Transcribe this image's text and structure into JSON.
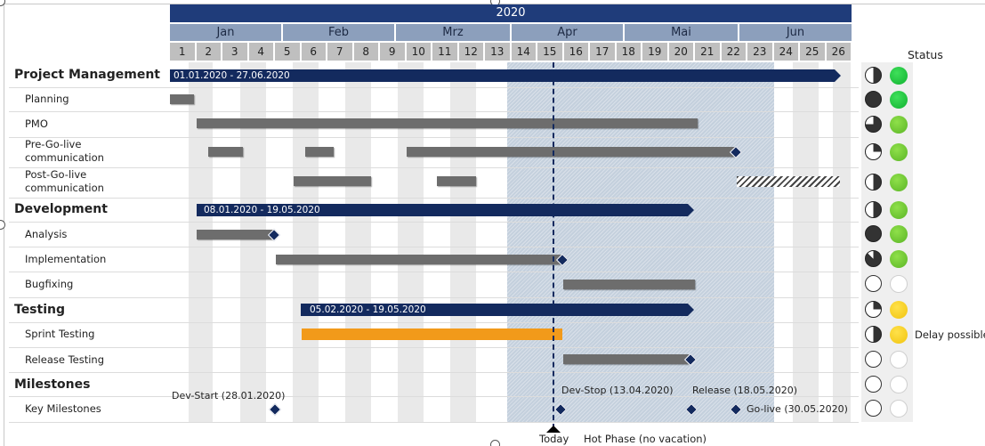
{
  "timeline": {
    "year": "2020",
    "months": [
      "Jan",
      "Feb",
      "Mrz",
      "Apr",
      "Mai",
      "Jun"
    ],
    "weeks": [
      "1",
      "2",
      "3",
      "4",
      "5",
      "6",
      "7",
      "8",
      "9",
      "10",
      "11",
      "12",
      "13",
      "14",
      "15",
      "16",
      "17",
      "18",
      "19",
      "20",
      "21",
      "22",
      "23",
      "24",
      "25",
      "26"
    ]
  },
  "status_header": "Status",
  "rows": [
    {
      "label": "Project Management",
      "level": 1,
      "status_fill": 0.5,
      "status_color": "green"
    },
    {
      "label": "Planning",
      "level": 2,
      "status_fill": 1.0,
      "status_color": "green"
    },
    {
      "label": "PMO",
      "level": 2,
      "status_fill": 0.75,
      "status_color": "light-green"
    },
    {
      "label": "Pre-Go-live communication",
      "level": 2,
      "status_fill": 0.25,
      "status_color": "light-green"
    },
    {
      "label": "Post-Go-live communication",
      "level": 2,
      "status_fill": 0.5,
      "status_color": "light-green"
    },
    {
      "label": "Development",
      "level": 1,
      "status_fill": 0.5,
      "status_color": "light-green"
    },
    {
      "label": "Analysis",
      "level": 2,
      "status_fill": 1.0,
      "status_color": "light-green"
    },
    {
      "label": "Implementation",
      "level": 2,
      "status_fill": 0.875,
      "status_color": "light-green"
    },
    {
      "label": "Bugfixing",
      "level": 2,
      "status_fill": 0,
      "status_color": "none"
    },
    {
      "label": "Testing",
      "level": 1,
      "status_fill": 0.25,
      "status_color": "yellow"
    },
    {
      "label": "Sprint Testing",
      "level": 2,
      "status_fill": 0.5,
      "status_color": "yellow",
      "note": "Delay possible"
    },
    {
      "label": "Release Testing",
      "level": 2,
      "status_fill": 0,
      "status_color": "none"
    },
    {
      "label": "Milestones",
      "level": 1,
      "status_fill": 0,
      "status_color": "none"
    },
    {
      "label": "Key Milestones",
      "level": 2,
      "status_fill": 0,
      "status_color": "none"
    }
  ],
  "summary_bars": [
    {
      "label": "01.01.2020 - 27.06.2020"
    },
    {
      "label": "08.01.2020 - 19.05.2020"
    },
    {
      "label": "05.02.2020 - 19.05.2020"
    }
  ],
  "milestones": [
    {
      "label": "Dev-Start (28.01.2020)"
    },
    {
      "label": "Dev-Stop (13.04.2020)"
    },
    {
      "label": "Release (18.05.2020)"
    },
    {
      "label": "Go-live (30.05.2020)"
    }
  ],
  "today_label": "Today",
  "hot_phase_label": "Hot Phase (no vacation)",
  "colors": {
    "year_bar": "#1f3c7a",
    "summary_bar": "#132a5e",
    "task_bar": "#6d6d6d",
    "sprint_bar": "#f29a1a",
    "hot_phase": "#c4d0dd",
    "status_green": "#11b131",
    "status_light_green": "#5bb526",
    "status_yellow": "#f1c40f"
  }
}
